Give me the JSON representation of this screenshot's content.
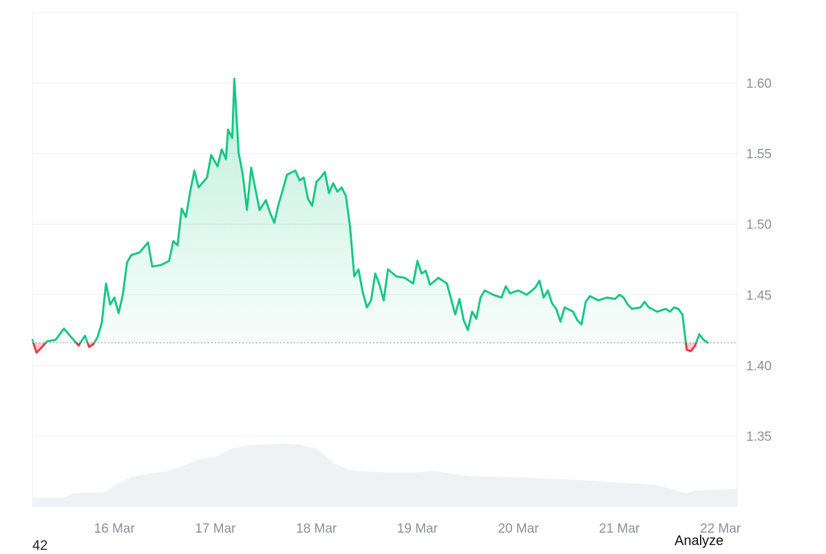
{
  "footer": {
    "left_text": "42",
    "analyze_label": "Analyze"
  },
  "chart_data": {
    "type": "line",
    "title": "",
    "xlabel": "",
    "ylabel": "",
    "ylim": [
      1.3,
      1.65
    ],
    "x_range": [
      "15 Mar 04:30",
      "22 Mar 04:00"
    ],
    "y_ticks": [
      "1.35",
      "1.40",
      "1.45",
      "1.50",
      "1.55",
      "1.60"
    ],
    "x_ticks": [
      "16 Mar",
      "17 Mar",
      "18 Mar",
      "19 Mar",
      "20 Mar",
      "21 Mar",
      "22 Mar"
    ],
    "baseline": 1.416,
    "grid": true,
    "colors": {
      "up": "#16c784",
      "down": "#ea3943",
      "grid": "#eef0f3",
      "volume": "#eff2f5",
      "tick": "#8a8f99"
    },
    "series": [
      {
        "values": [
          [
            "15 Mar 04:30",
            1.418
          ],
          [
            "15 Mar 05:30",
            1.409
          ],
          [
            "15 Mar 06:30",
            1.412
          ],
          [
            "15 Mar 08:00",
            1.417
          ],
          [
            "15 Mar 10:00",
            1.418
          ],
          [
            "15 Mar 12:00",
            1.426
          ],
          [
            "15 Mar 14:00",
            1.419
          ],
          [
            "15 Mar 15:30",
            1.414
          ],
          [
            "15 Mar 17:00",
            1.421
          ],
          [
            "15 Mar 18:00",
            1.413
          ],
          [
            "15 Mar 19:00",
            1.415
          ],
          [
            "15 Mar 20:00",
            1.42
          ],
          [
            "15 Mar 21:00",
            1.43
          ],
          [
            "15 Mar 22:00",
            1.458
          ],
          [
            "15 Mar 23:00",
            1.443
          ],
          [
            "16 Mar 00:00",
            1.448
          ],
          [
            "16 Mar 01:00",
            1.437
          ],
          [
            "16 Mar 02:00",
            1.45
          ],
          [
            "16 Mar 03:00",
            1.473
          ],
          [
            "16 Mar 04:00",
            1.478
          ],
          [
            "16 Mar 06:00",
            1.48
          ],
          [
            "16 Mar 08:00",
            1.487
          ],
          [
            "16 Mar 09:00",
            1.47
          ],
          [
            "16 Mar 11:00",
            1.471
          ],
          [
            "16 Mar 13:00",
            1.474
          ],
          [
            "16 Mar 14:00",
            1.488
          ],
          [
            "16 Mar 15:00",
            1.485
          ],
          [
            "16 Mar 16:00",
            1.511
          ],
          [
            "16 Mar 17:00",
            1.505
          ],
          [
            "16 Mar 18:00",
            1.523
          ],
          [
            "16 Mar 19:00",
            1.538
          ],
          [
            "16 Mar 20:00",
            1.526
          ],
          [
            "16 Mar 22:00",
            1.533
          ],
          [
            "16 Mar 23:00",
            1.549
          ],
          [
            "17 Mar 00:30",
            1.541
          ],
          [
            "17 Mar 01:30",
            1.553
          ],
          [
            "17 Mar 02:30",
            1.546
          ],
          [
            "17 Mar 03:00",
            1.567
          ],
          [
            "17 Mar 04:00",
            1.561
          ],
          [
            "17 Mar 04:30",
            1.603
          ],
          [
            "17 Mar 05:30",
            1.551
          ],
          [
            "17 Mar 06:30",
            1.535
          ],
          [
            "17 Mar 07:30",
            1.51
          ],
          [
            "17 Mar 08:30",
            1.54
          ],
          [
            "17 Mar 09:30",
            1.525
          ],
          [
            "17 Mar 10:30",
            1.51
          ],
          [
            "17 Mar 12:00",
            1.517
          ],
          [
            "17 Mar 13:00",
            1.508
          ],
          [
            "17 Mar 14:00",
            1.501
          ],
          [
            "17 Mar 15:00",
            1.514
          ],
          [
            "17 Mar 16:00",
            1.524
          ],
          [
            "17 Mar 17:00",
            1.535
          ],
          [
            "17 Mar 19:00",
            1.538
          ],
          [
            "17 Mar 20:00",
            1.531
          ],
          [
            "17 Mar 21:00",
            1.533
          ],
          [
            "17 Mar 22:00",
            1.518
          ],
          [
            "17 Mar 23:00",
            1.513
          ],
          [
            "18 Mar 00:00",
            1.53
          ],
          [
            "18 Mar 01:00",
            1.533
          ],
          [
            "18 Mar 02:00",
            1.537
          ],
          [
            "18 Mar 03:00",
            1.522
          ],
          [
            "18 Mar 04:00",
            1.529
          ],
          [
            "18 Mar 05:00",
            1.523
          ],
          [
            "18 Mar 06:00",
            1.526
          ],
          [
            "18 Mar 07:00",
            1.52
          ],
          [
            "18 Mar 08:00",
            1.498
          ],
          [
            "18 Mar 09:00",
            1.463
          ],
          [
            "18 Mar 10:00",
            1.468
          ],
          [
            "18 Mar 11:00",
            1.452
          ],
          [
            "18 Mar 12:00",
            1.441
          ],
          [
            "18 Mar 13:00",
            1.446
          ],
          [
            "18 Mar 14:00",
            1.465
          ],
          [
            "18 Mar 15:00",
            1.457
          ],
          [
            "18 Mar 16:00",
            1.446
          ],
          [
            "18 Mar 17:00",
            1.468
          ],
          [
            "18 Mar 19:00",
            1.463
          ],
          [
            "18 Mar 21:00",
            1.462
          ],
          [
            "18 Mar 23:00",
            1.458
          ],
          [
            "19 Mar 00:00",
            1.474
          ],
          [
            "19 Mar 01:00",
            1.465
          ],
          [
            "19 Mar 02:00",
            1.467
          ],
          [
            "19 Mar 03:00",
            1.457
          ],
          [
            "19 Mar 05:00",
            1.462
          ],
          [
            "19 Mar 07:00",
            1.458
          ],
          [
            "19 Mar 08:00",
            1.447
          ],
          [
            "19 Mar 09:00",
            1.436
          ],
          [
            "19 Mar 10:00",
            1.447
          ],
          [
            "19 Mar 11:00",
            1.432
          ],
          [
            "19 Mar 12:00",
            1.425
          ],
          [
            "19 Mar 13:00",
            1.438
          ],
          [
            "19 Mar 14:00",
            1.433
          ],
          [
            "19 Mar 15:00",
            1.448
          ],
          [
            "19 Mar 16:00",
            1.453
          ],
          [
            "19 Mar 18:00",
            1.45
          ],
          [
            "19 Mar 20:00",
            1.448
          ],
          [
            "19 Mar 21:00",
            1.456
          ],
          [
            "19 Mar 22:00",
            1.451
          ],
          [
            "20 Mar 00:00",
            1.453
          ],
          [
            "20 Mar 02:00",
            1.45
          ],
          [
            "20 Mar 04:00",
            1.455
          ],
          [
            "20 Mar 05:00",
            1.46
          ],
          [
            "20 Mar 06:00",
            1.448
          ],
          [
            "20 Mar 07:00",
            1.453
          ],
          [
            "20 Mar 08:00",
            1.444
          ],
          [
            "20 Mar 09:00",
            1.44
          ],
          [
            "20 Mar 10:00",
            1.431
          ],
          [
            "20 Mar 11:00",
            1.441
          ],
          [
            "20 Mar 13:00",
            1.438
          ],
          [
            "20 Mar 14:00",
            1.432
          ],
          [
            "20 Mar 15:00",
            1.429
          ],
          [
            "20 Mar 16:00",
            1.445
          ],
          [
            "20 Mar 17:00",
            1.449
          ],
          [
            "20 Mar 19:00",
            1.446
          ],
          [
            "20 Mar 21:00",
            1.448
          ],
          [
            "20 Mar 23:00",
            1.447
          ],
          [
            "21 Mar 00:00",
            1.45
          ],
          [
            "21 Mar 01:00",
            1.448
          ],
          [
            "21 Mar 02:00",
            1.443
          ],
          [
            "21 Mar 03:00",
            1.44
          ],
          [
            "21 Mar 05:00",
            1.441
          ],
          [
            "21 Mar 06:00",
            1.445
          ],
          [
            "21 Mar 07:00",
            1.441
          ],
          [
            "21 Mar 09:00",
            1.438
          ],
          [
            "21 Mar 11:00",
            1.44
          ],
          [
            "21 Mar 12:00",
            1.438
          ],
          [
            "21 Mar 13:00",
            1.441
          ],
          [
            "21 Mar 14:00",
            1.44
          ],
          [
            "21 Mar 15:00",
            1.436
          ],
          [
            "21 Mar 16:00",
            1.411
          ],
          [
            "21 Mar 17:00",
            1.41
          ],
          [
            "21 Mar 18:00",
            1.414
          ],
          [
            "21 Mar 19:00",
            1.422
          ],
          [
            "21 Mar 20:00",
            1.418
          ],
          [
            "21 Mar 21:00",
            1.416
          ]
        ]
      }
    ],
    "volume": [
      [
        "15 Mar 04:30",
        0.12
      ],
      [
        "15 Mar 12:00",
        0.12
      ],
      [
        "15 Mar 14:00",
        0.18
      ],
      [
        "15 Mar 22:00",
        0.2
      ],
      [
        "16 Mar 00:00",
        0.3
      ],
      [
        "16 Mar 04:00",
        0.4
      ],
      [
        "16 Mar 08:00",
        0.45
      ],
      [
        "16 Mar 12:00",
        0.48
      ],
      [
        "16 Mar 16:00",
        0.55
      ],
      [
        "16 Mar 20:00",
        0.65
      ],
      [
        "17 Mar 00:00",
        0.68
      ],
      [
        "17 Mar 04:00",
        0.8
      ],
      [
        "17 Mar 08:00",
        0.84
      ],
      [
        "17 Mar 12:00",
        0.85
      ],
      [
        "17 Mar 16:00",
        0.86
      ],
      [
        "17 Mar 20:00",
        0.85
      ],
      [
        "18 Mar 00:00",
        0.8
      ],
      [
        "18 Mar 04:00",
        0.6
      ],
      [
        "18 Mar 08:00",
        0.5
      ],
      [
        "18 Mar 12:00",
        0.48
      ],
      [
        "18 Mar 16:00",
        0.47
      ],
      [
        "18 Mar 20:00",
        0.47
      ],
      [
        "19 Mar 00:00",
        0.47
      ],
      [
        "19 Mar 04:00",
        0.49
      ],
      [
        "19 Mar 08:00",
        0.45
      ],
      [
        "19 Mar 12:00",
        0.42
      ],
      [
        "19 Mar 16:00",
        0.41
      ],
      [
        "20 Mar 00:00",
        0.4
      ],
      [
        "20 Mar 08:00",
        0.38
      ],
      [
        "20 Mar 16:00",
        0.36
      ],
      [
        "21 Mar 00:00",
        0.33
      ],
      [
        "21 Mar 08:00",
        0.3
      ],
      [
        "21 Mar 12:00",
        0.25
      ],
      [
        "21 Mar 16:00",
        0.18
      ],
      [
        "21 Mar 18:00",
        0.22
      ],
      [
        "22 Mar 04:00",
        0.24
      ]
    ]
  }
}
